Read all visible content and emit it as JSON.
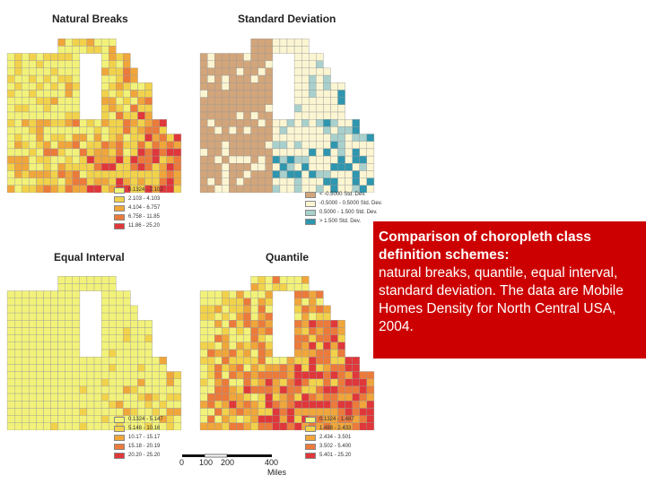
{
  "maps": [
    {
      "id": "natural-breaks",
      "title": "Natural Breaks",
      "legend": [
        {
          "label": "0.1324 - 2.102",
          "color": "#f2f27a"
        },
        {
          "label": "2.103 - 4.103",
          "color": "#f2d24a"
        },
        {
          "label": "4.104 - 6.757",
          "color": "#f0a63a"
        },
        {
          "label": "6.758 - 11.85",
          "color": "#ec7a3a"
        },
        {
          "label": "11.86 - 25.20",
          "color": "#e0373a"
        }
      ]
    },
    {
      "id": "standard-deviation",
      "title": "Standard Deviation",
      "legend": [
        {
          "label": "< -0.5000 Std. Dev.",
          "color": "#d2a57a"
        },
        {
          "label": "-0.5000 - 0.5000 Std. Dev.",
          "color": "#fbf5d2"
        },
        {
          "label": "0.5000 - 1.500 Std. Dev.",
          "color": "#a8d0cc"
        },
        {
          "label": "> 1.500 Std. Dev.",
          "color": "#2e96ae"
        }
      ]
    },
    {
      "id": "equal-interval",
      "title": "Equal Interval",
      "legend": [
        {
          "label": "0.1324 - 5.147",
          "color": "#f2f27a"
        },
        {
          "label": "5.148 - 10.16",
          "color": "#f2d24a"
        },
        {
          "label": "10.17 - 15.17",
          "color": "#f0a63a"
        },
        {
          "label": "15.18 - 20.19",
          "color": "#ec7a3a"
        },
        {
          "label": "20.20 - 25.20",
          "color": "#e0373a"
        }
      ]
    },
    {
      "id": "quantile",
      "title": "Quantile",
      "legend": [
        {
          "label": "0.1324 - 1.487",
          "color": "#f2f27a"
        },
        {
          "label": "1.488 - 2.433",
          "color": "#f2d24a"
        },
        {
          "label": "2.434 - 3.501",
          "color": "#f0a63a"
        },
        {
          "label": "3.502 - 5.400",
          "color": "#ec7a3a"
        },
        {
          "label": "5.401 - 25.20",
          "color": "#e0373a"
        }
      ]
    }
  ],
  "caption": {
    "bold": "Comparison of choropleth class definition schemes:",
    "body": "natural breaks, quantile, equal interval, standard deviation. The data are Mobile Homes Density for North Central USA, 2004."
  },
  "scalebar": {
    "ticks": [
      "0",
      "100",
      "200",
      "400"
    ],
    "unit": "Miles"
  },
  "colors": {
    "lake": "#ffffff",
    "border": "#9a9a9a",
    "caption_bg": "#cc0000"
  }
}
